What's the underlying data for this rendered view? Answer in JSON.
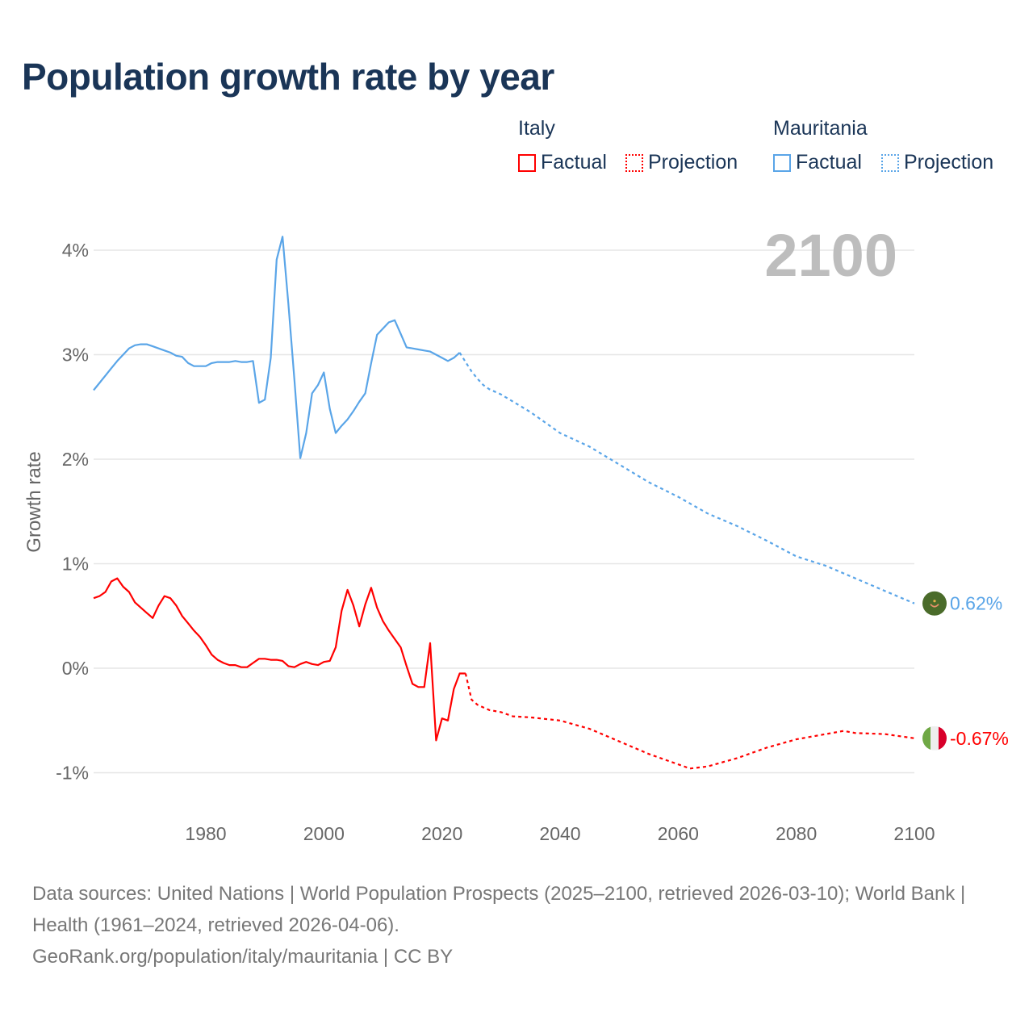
{
  "chart_data": {
    "type": "line",
    "title": "Population growth rate by year",
    "xlabel": "",
    "ylabel": "Growth rate",
    "xlim": [
      1961,
      2100
    ],
    "ylim": [
      -1.3,
      4.3
    ],
    "xticks": [
      1980,
      2000,
      2020,
      2040,
      2060,
      2080,
      2100
    ],
    "xtick_labels": [
      "1980",
      "2000",
      "2020",
      "2040",
      "2060",
      "2080",
      "2100"
    ],
    "yticks": [
      -1,
      0,
      1,
      2,
      3,
      4
    ],
    "ytick_labels": [
      "-1%",
      "0%",
      "1%",
      "2%",
      "3%",
      "4%"
    ],
    "grid": true,
    "year_overlay": "2100",
    "legend": {
      "placement": "top-right",
      "groups": [
        {
          "name": "Italy",
          "factual": "Factual",
          "projection": "Projection",
          "color": "#ff0000"
        },
        {
          "name": "Mauritania",
          "factual": "Factual",
          "projection": "Projection",
          "color": "#5aa5e8"
        }
      ]
    },
    "series": [
      {
        "name": "Mauritania",
        "kind": "Factual",
        "color": "#5aa5e8",
        "x": [
          1961,
          1962,
          1963,
          1964,
          1965,
          1966,
          1967,
          1968,
          1969,
          1970,
          1971,
          1972,
          1973,
          1974,
          1975,
          1976,
          1977,
          1978,
          1979,
          1980,
          1981,
          1982,
          1983,
          1984,
          1985,
          1986,
          1987,
          1988,
          1989,
          1990,
          1991,
          1992,
          1993,
          1994,
          1995,
          1996,
          1997,
          1998,
          1999,
          2000,
          2001,
          2002,
          2003,
          2004,
          2005,
          2006,
          2007,
          2008,
          2009,
          2010,
          2011,
          2012,
          2013,
          2014,
          2015,
          2016,
          2017,
          2018,
          2019,
          2020,
          2021,
          2022,
          2023
        ],
        "y": [
          2.66,
          2.73,
          2.8,
          2.87,
          2.94,
          3.0,
          3.06,
          3.09,
          3.1,
          3.1,
          3.08,
          3.06,
          3.04,
          3.02,
          2.99,
          2.98,
          2.92,
          2.89,
          2.89,
          2.89,
          2.92,
          2.93,
          2.93,
          2.93,
          2.94,
          2.93,
          2.93,
          2.94,
          2.54,
          2.57,
          2.97,
          3.91,
          4.13,
          3.48,
          2.76,
          2.01,
          2.25,
          2.63,
          2.71,
          2.83,
          2.48,
          2.25,
          2.32,
          2.38,
          2.46,
          2.55,
          2.63,
          2.92,
          3.19,
          3.25,
          3.31,
          3.33,
          3.2,
          3.07,
          3.06,
          3.05,
          3.04,
          3.03,
          3.0,
          2.97,
          2.94,
          2.97,
          3.02
        ]
      },
      {
        "name": "Mauritania",
        "kind": "Projection",
        "color": "#5aa5e8",
        "x": [
          2023,
          2024,
          2025,
          2026,
          2027,
          2028,
          2030,
          2035,
          2040,
          2045,
          2050,
          2055,
          2060,
          2065,
          2070,
          2075,
          2080,
          2085,
          2090,
          2095,
          2100
        ],
        "y": [
          3.02,
          2.93,
          2.84,
          2.77,
          2.71,
          2.67,
          2.62,
          2.45,
          2.25,
          2.12,
          1.95,
          1.78,
          1.64,
          1.48,
          1.36,
          1.22,
          1.07,
          0.98,
          0.86,
          0.74,
          0.62
        ]
      },
      {
        "name": "Italy",
        "kind": "Factual",
        "color": "#ff0000",
        "x": [
          1961,
          1962,
          1963,
          1964,
          1965,
          1966,
          1967,
          1968,
          1969,
          1970,
          1971,
          1972,
          1973,
          1974,
          1975,
          1976,
          1977,
          1978,
          1979,
          1980,
          1981,
          1982,
          1983,
          1984,
          1985,
          1986,
          1987,
          1988,
          1989,
          1990,
          1991,
          1992,
          1993,
          1994,
          1995,
          1996,
          1997,
          1998,
          1999,
          2000,
          2001,
          2002,
          2003,
          2004,
          2005,
          2006,
          2007,
          2008,
          2009,
          2010,
          2011,
          2012,
          2013,
          2014,
          2015,
          2016,
          2017,
          2018,
          2019,
          2020,
          2021,
          2022,
          2023,
          2024
        ],
        "y": [
          0.67,
          0.69,
          0.73,
          0.83,
          0.86,
          0.78,
          0.73,
          0.63,
          0.58,
          0.53,
          0.48,
          0.6,
          0.69,
          0.67,
          0.6,
          0.5,
          0.43,
          0.36,
          0.3,
          0.22,
          0.13,
          0.08,
          0.05,
          0.03,
          0.03,
          0.01,
          0.01,
          0.05,
          0.09,
          0.09,
          0.08,
          0.08,
          0.07,
          0.02,
          0.01,
          0.04,
          0.06,
          0.04,
          0.03,
          0.06,
          0.07,
          0.2,
          0.55,
          0.75,
          0.6,
          0.4,
          0.61,
          0.77,
          0.58,
          0.45,
          0.36,
          0.28,
          0.2,
          0.02,
          -0.15,
          -0.18,
          -0.18,
          0.24,
          -0.69,
          -0.48,
          -0.5,
          -0.2,
          -0.05,
          -0.05
        ]
      },
      {
        "name": "Italy",
        "kind": "Projection",
        "color": "#ff0000",
        "x": [
          2024,
          2025,
          2026,
          2028,
          2030,
          2032,
          2035,
          2040,
          2045,
          2050,
          2055,
          2060,
          2062,
          2065,
          2070,
          2075,
          2080,
          2085,
          2088,
          2090,
          2095,
          2100
        ],
        "y": [
          -0.05,
          -0.3,
          -0.35,
          -0.4,
          -0.42,
          -0.46,
          -0.47,
          -0.5,
          -0.58,
          -0.7,
          -0.82,
          -0.92,
          -0.96,
          -0.94,
          -0.86,
          -0.76,
          -0.68,
          -0.63,
          -0.6,
          -0.62,
          -0.63,
          -0.67
        ]
      }
    ],
    "end_labels": [
      {
        "country": "Mauritania",
        "value": 0.62,
        "text": "0.62%",
        "color": "#5aa5e8",
        "flag": "mauritania-flag-icon"
      },
      {
        "country": "Italy",
        "value": -0.67,
        "text": "-0.67%",
        "color": "#ff0000",
        "flag": "italy-flag-icon"
      }
    ]
  },
  "footer": {
    "sources": "Data sources: United Nations | World Population Prospects (2025–2100, retrieved 2026-03-10); World Bank | Health (1961–2024, retrieved 2026-04-06).",
    "credit": "GeoRank.org/population/italy/mauritania | CC BY"
  }
}
